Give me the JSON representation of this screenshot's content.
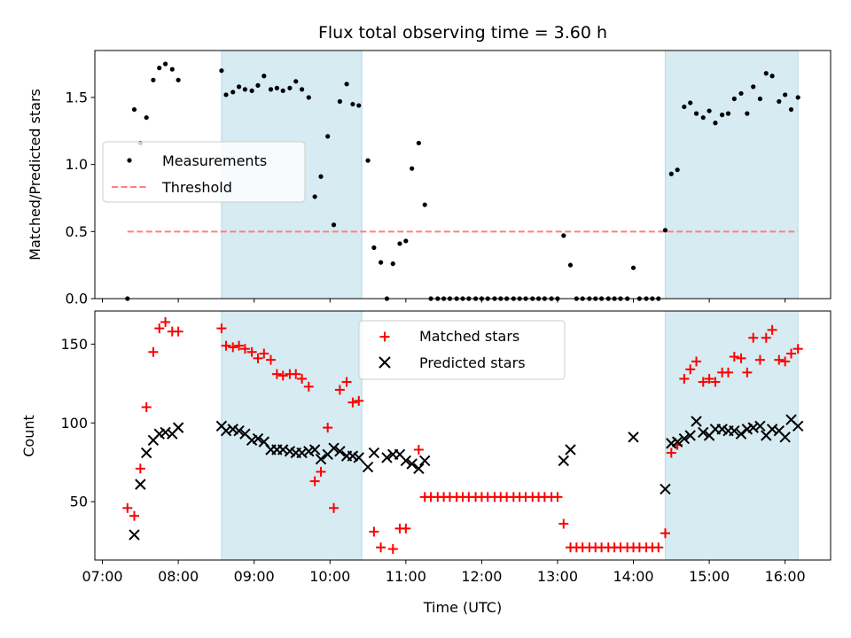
{
  "chart_data": [
    {
      "type": "scatter",
      "title": "Flux total observing time = 3.60 h",
      "xlabel": "",
      "ylabel": "Matched/Predicted stars",
      "xlim": [
        6.9,
        16.6
      ],
      "ylim": [
        0.0,
        1.85
      ],
      "yticks": [
        0.0,
        0.5,
        1.0,
        1.5
      ],
      "ytick_labels": [
        "0.0",
        "0.5",
        "1.0",
        "1.5"
      ],
      "shaded_ranges": [
        [
          8.57,
          10.42
        ],
        [
          14.42,
          16.17
        ]
      ],
      "threshold": {
        "name": "Threshold",
        "y": 0.5,
        "x_start": 7.33,
        "x_end": 16.17,
        "color": "#ff7f7f"
      },
      "legend": {
        "position": "center-left",
        "entries": [
          "Measurements",
          "Threshold"
        ]
      },
      "series": [
        {
          "name": "Measurements",
          "marker": "dot",
          "color": "#000000",
          "x": [
            7.33,
            7.42,
            7.5,
            7.58,
            7.67,
            7.75,
            7.83,
            7.92,
            8.0,
            8.57,
            8.63,
            8.72,
            8.8,
            8.88,
            8.97,
            9.05,
            9.13,
            9.22,
            9.3,
            9.38,
            9.47,
            9.55,
            9.63,
            9.72,
            9.8,
            9.88,
            9.97,
            10.05,
            10.13,
            10.22,
            10.3,
            10.38,
            10.5,
            10.58,
            10.67,
            10.75,
            10.83,
            10.92,
            11.0,
            11.08,
            11.17,
            11.25,
            11.33,
            11.42,
            11.5,
            11.58,
            11.67,
            11.75,
            11.83,
            11.92,
            12.0,
            12.08,
            12.17,
            12.25,
            12.33,
            12.42,
            12.5,
            12.58,
            12.67,
            12.75,
            12.83,
            12.92,
            13.0,
            13.08,
            13.17,
            13.25,
            13.33,
            13.42,
            13.5,
            13.58,
            13.67,
            13.75,
            13.83,
            13.92,
            14.0,
            14.08,
            14.17,
            14.25,
            14.33,
            14.42,
            14.5,
            14.58,
            14.67,
            14.75,
            14.83,
            14.92,
            15.0,
            15.08,
            15.17,
            15.25,
            15.33,
            15.42,
            15.5,
            15.58,
            15.67,
            15.75,
            15.83,
            15.92,
            16.0,
            16.08,
            16.17
          ],
          "y": [
            0.0,
            1.41,
            1.16,
            1.35,
            1.63,
            1.72,
            1.75,
            1.71,
            1.63,
            1.7,
            1.52,
            1.54,
            1.58,
            1.56,
            1.55,
            1.59,
            1.66,
            1.56,
            1.57,
            1.55,
            1.57,
            1.62,
            1.56,
            1.5,
            0.76,
            0.91,
            1.21,
            0.55,
            1.47,
            1.6,
            1.45,
            1.44,
            1.03,
            0.38,
            0.27,
            0.0,
            0.26,
            0.41,
            0.43,
            0.97,
            1.16,
            0.7,
            0.0,
            0.0,
            0.0,
            0.0,
            0.0,
            0.0,
            0.0,
            0.0,
            0.0,
            0.0,
            0.0,
            0.0,
            0.0,
            0.0,
            0.0,
            0.0,
            0.0,
            0.0,
            0.0,
            0.0,
            0.0,
            0.47,
            0.25,
            0.0,
            0.0,
            0.0,
            0.0,
            0.0,
            0.0,
            0.0,
            0.0,
            0.0,
            0.23,
            0.0,
            0.0,
            0.0,
            0.0,
            0.51,
            0.93,
            0.96,
            1.43,
            1.46,
            1.38,
            1.35,
            1.4,
            1.31,
            1.37,
            1.38,
            1.49,
            1.53,
            1.38,
            1.58,
            1.49,
            1.68,
            1.66,
            1.47,
            1.52,
            1.41,
            1.5
          ]
        }
      ]
    },
    {
      "type": "scatter",
      "title": "",
      "xlabel": "Time (UTC)",
      "ylabel": "Count",
      "xlim": [
        6.9,
        16.6
      ],
      "ylim": [
        13,
        171
      ],
      "yticks": [
        50,
        100,
        150
      ],
      "ytick_labels": [
        "50",
        "100",
        "150"
      ],
      "xticks": [
        7,
        8,
        9,
        10,
        11,
        12,
        13,
        14,
        15,
        16
      ],
      "xtick_labels": [
        "07:00",
        "08:00",
        "09:00",
        "10:00",
        "11:00",
        "12:00",
        "13:00",
        "14:00",
        "15:00",
        "16:00"
      ],
      "shaded_ranges": [
        [
          8.57,
          10.42
        ],
        [
          14.42,
          16.17
        ]
      ],
      "legend": {
        "position": "top-center",
        "entries": [
          "Matched stars",
          "Predicted stars"
        ]
      },
      "series": [
        {
          "name": "Matched stars",
          "marker": "plus",
          "color": "#ff0000",
          "x": [
            7.33,
            7.42,
            7.5,
            7.58,
            7.67,
            7.75,
            7.83,
            7.92,
            8.0,
            8.57,
            8.63,
            8.72,
            8.8,
            8.88,
            8.97,
            9.05,
            9.13,
            9.22,
            9.3,
            9.38,
            9.47,
            9.55,
            9.63,
            9.72,
            9.8,
            9.88,
            9.97,
            10.05,
            10.13,
            10.22,
            10.3,
            10.38,
            10.5,
            10.58,
            10.67,
            10.75,
            10.83,
            10.92,
            11.0,
            11.08,
            11.17,
            11.25,
            11.33,
            11.42,
            11.5,
            11.58,
            11.67,
            11.75,
            11.83,
            11.92,
            12.0,
            12.08,
            12.17,
            12.25,
            12.33,
            12.42,
            12.5,
            12.58,
            12.67,
            12.75,
            12.83,
            12.92,
            13.0,
            13.08,
            13.17,
            13.25,
            13.33,
            13.42,
            13.5,
            13.58,
            13.67,
            13.75,
            13.83,
            13.92,
            14.0,
            14.08,
            14.17,
            14.25,
            14.33,
            14.42,
            14.5,
            14.58,
            14.67,
            14.75,
            14.83,
            14.92,
            15.0,
            15.08,
            15.17,
            15.25,
            15.33,
            15.42,
            15.5,
            15.58,
            15.67,
            15.75,
            15.83,
            15.92,
            16.0,
            16.08,
            16.17
          ],
          "y": [
            46,
            41,
            71,
            110,
            145,
            160,
            164,
            158,
            158,
            160,
            149,
            148,
            149,
            147,
            145,
            141,
            144,
            140,
            131,
            130,
            131,
            131,
            128,
            123,
            63,
            69,
            97,
            46,
            121,
            126,
            113,
            114,
            null,
            31,
            21,
            null,
            20,
            33,
            33,
            null,
            83,
            53,
            53,
            53,
            53,
            53,
            53,
            53,
            53,
            53,
            53,
            53,
            53,
            53,
            53,
            53,
            53,
            53,
            53,
            53,
            53,
            53,
            53,
            36,
            21,
            21,
            21,
            21,
            21,
            21,
            21,
            21,
            21,
            21,
            21,
            21,
            21,
            21,
            21,
            30,
            81,
            86,
            128,
            134,
            139,
            126,
            128,
            126,
            132,
            132,
            142,
            141,
            132,
            154,
            140,
            154,
            159,
            140,
            139,
            144,
            147
          ]
        },
        {
          "name": "Predicted stars",
          "marker": "x",
          "color": "#000000",
          "x": [
            7.33,
            7.42,
            7.5,
            7.58,
            7.67,
            7.75,
            7.83,
            7.92,
            8.0,
            8.57,
            8.63,
            8.72,
            8.8,
            8.88,
            8.97,
            9.05,
            9.13,
            9.22,
            9.3,
            9.38,
            9.47,
            9.55,
            9.63,
            9.72,
            9.8,
            9.88,
            9.97,
            10.05,
            10.13,
            10.22,
            10.3,
            10.38,
            10.5,
            10.58,
            10.67,
            10.75,
            10.83,
            10.92,
            11.0,
            11.08,
            11.17,
            11.25,
            13.08,
            13.17,
            14.0,
            14.42,
            14.5,
            14.58,
            14.67,
            14.75,
            14.83,
            14.92,
            15.0,
            15.08,
            15.17,
            15.25,
            15.33,
            15.42,
            15.5,
            15.58,
            15.67,
            15.75,
            15.83,
            15.92,
            16.0,
            16.08,
            16.17
          ],
          "y": [
            null,
            29,
            61,
            81,
            89,
            93,
            94,
            93,
            97,
            98,
            95,
            96,
            95,
            93,
            89,
            90,
            88,
            83,
            83,
            83,
            82,
            81,
            81,
            82,
            83,
            77,
            80,
            84,
            82,
            79,
            79,
            78,
            72,
            81,
            null,
            78,
            80,
            80,
            76,
            74,
            71,
            76,
            76,
            83,
            91,
            58,
            87,
            88,
            90,
            92,
            101,
            94,
            92,
            96,
            96,
            95,
            95,
            93,
            96,
            97,
            98,
            92,
            96,
            95,
            91,
            102,
            98
          ]
        }
      ]
    }
  ]
}
